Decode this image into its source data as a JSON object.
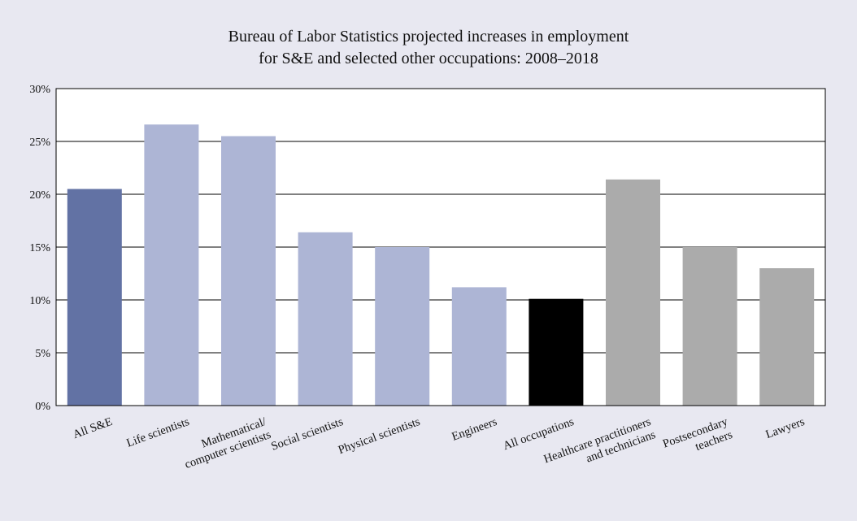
{
  "chart_data": {
    "type": "bar",
    "title_lines": [
      "Bureau of Labor Statistics projected increases in employment",
      "for S&E and selected other occupations: 2008–2018"
    ],
    "categories": [
      [
        "All S&E"
      ],
      [
        "Life scientists"
      ],
      [
        "Mathematical/",
        "computer scientists"
      ],
      [
        "Social scientists"
      ],
      [
        "Physical scientists"
      ],
      [
        "Engineers"
      ],
      [
        "All occupations"
      ],
      [
        "Healthcare practitioners",
        "and technicians"
      ],
      [
        "Postsecondary",
        "teachers"
      ],
      [
        "Lawyers"
      ]
    ],
    "values": [
      20.5,
      26.6,
      25.5,
      16.4,
      15.0,
      11.2,
      10.1,
      21.4,
      15.0,
      13.0
    ],
    "bar_colors": [
      "#6272a4",
      "#adb5d5",
      "#adb5d5",
      "#adb5d5",
      "#adb5d5",
      "#adb5d5",
      "#000000",
      "#ababab",
      "#ababab",
      "#ababab"
    ],
    "ylim": [
      0,
      30
    ],
    "yticks": [
      0,
      5,
      10,
      15,
      20,
      25,
      30
    ],
    "ytick_labels": [
      "0%",
      "5%",
      "10%",
      "15%",
      "20%",
      "25%",
      "30%"
    ],
    "grid": true,
    "xlabel": "",
    "ylabel": ""
  }
}
